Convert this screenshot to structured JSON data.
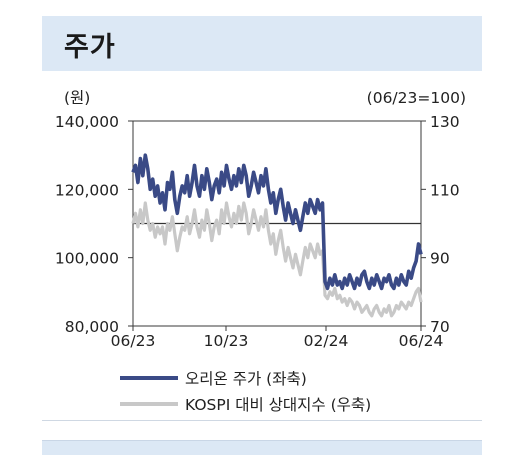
{
  "header": {
    "title": "주가"
  },
  "chart_data": {
    "type": "line",
    "left_unit": "(원)",
    "right_unit": "(06/23=100)",
    "left_ticks": [
      "140,000",
      "120,000",
      "100,000",
      "80,000"
    ],
    "left_tick_values": [
      140000,
      120000,
      100000,
      80000
    ],
    "right_ticks": [
      "130",
      "110",
      "90",
      "70"
    ],
    "right_tick_values": [
      130,
      110,
      90,
      70
    ],
    "x_ticks": [
      "06/23",
      "10/23",
      "02/24",
      "06/24"
    ],
    "ylim_left": [
      80000,
      140000
    ],
    "ylim_right": [
      70,
      130
    ],
    "reference_line_right": 100,
    "colors": {
      "price": "#3a4a86",
      "kospi": "#c8c8c8",
      "ref": "#333333"
    },
    "series": [
      {
        "name": "오리온 주가 (좌축)",
        "axis": "left",
        "values": [
          125000,
          127000,
          122000,
          129000,
          124000,
          130000,
          126000,
          120000,
          123000,
          118000,
          121000,
          116000,
          119000,
          114000,
          122000,
          120000,
          125000,
          117000,
          113000,
          118000,
          121000,
          119000,
          124000,
          118000,
          122000,
          127000,
          121000,
          118000,
          124000,
          120000,
          126000,
          122000,
          117000,
          121000,
          123000,
          119000,
          125000,
          121000,
          127000,
          123000,
          120000,
          124000,
          121000,
          126000,
          122000,
          127000,
          124000,
          118000,
          121000,
          125000,
          122000,
          119000,
          124000,
          121000,
          126000,
          120000,
          116000,
          119000,
          113000,
          117000,
          120000,
          115000,
          111000,
          116000,
          113000,
          110000,
          114000,
          111000,
          108000,
          112000,
          116000,
          113000,
          117000,
          115000,
          113000,
          117000,
          114000,
          116000,
          93000,
          91000,
          94000,
          92000,
          95000,
          92000,
          93000,
          91000,
          94000,
          92000,
          95000,
          93000,
          91000,
          94000,
          92000,
          95000,
          96000,
          93000,
          91000,
          94000,
          92000,
          95000,
          93000,
          91000,
          94000,
          93000,
          95000,
          92000,
          91000,
          94000,
          92000,
          95000,
          93000,
          92000,
          96000,
          94000,
          97000,
          99000,
          104000,
          101000
        ]
      },
      {
        "name": "KOSPI 대비 상대지수 (우축)",
        "axis": "right",
        "values": [
          100,
          103,
          99,
          104,
          100,
          106,
          101,
          98,
          100,
          96,
          99,
          97,
          99,
          94,
          100,
          98,
          102,
          97,
          92,
          96,
          99,
          98,
          102,
          97,
          100,
          104,
          99,
          96,
          101,
          98,
          104,
          100,
          95,
          99,
          101,
          97,
          104,
          100,
          106,
          102,
          99,
          103,
          100,
          105,
          101,
          106,
          103,
          97,
          100,
          104,
          101,
          98,
          102,
          99,
          104,
          98,
          94,
          97,
          91,
          95,
          98,
          93,
          89,
          93,
          90,
          87,
          91,
          88,
          85,
          89,
          93,
          90,
          94,
          92,
          90,
          94,
          91,
          92,
          79,
          78,
          80,
          79,
          81,
          78,
          79,
          77,
          78,
          76,
          78,
          77,
          75,
          77,
          76,
          74,
          75,
          76,
          74,
          73,
          75,
          76,
          74,
          73,
          75,
          74,
          76,
          73,
          74,
          76,
          75,
          77,
          76,
          75,
          77,
          76,
          78,
          80,
          81,
          77
        ]
      }
    ]
  }
}
